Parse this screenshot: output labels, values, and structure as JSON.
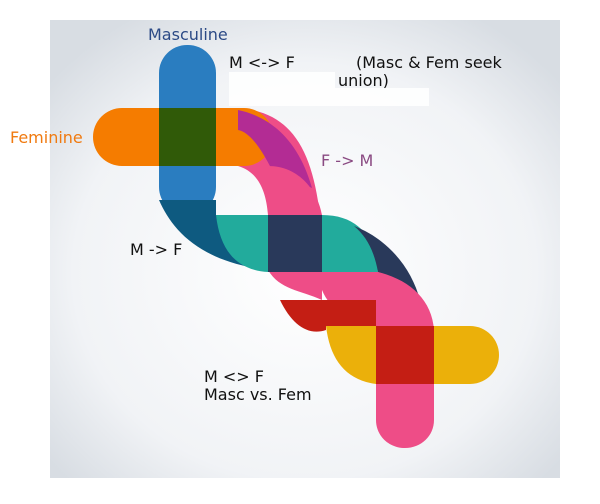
{
  "colors": {
    "masculine": "#2a7dc0",
    "masculine_shadow": "#0e5a80",
    "feminine": "#f57c00",
    "overlap_mf": "#305a08",
    "f_to_m": "#b32c94",
    "pink": "#ee4d87",
    "teal": "#22ab9c",
    "navy": "#29395a",
    "red": "#c41e14",
    "yellow": "#ebb00a",
    "label_masculine": "#2c4a86",
    "label_feminine": "#f07a10",
    "label_f_to_m": "#8a4a82"
  },
  "labels": {
    "masculine": "Masculine",
    "feminine": "Feminine",
    "f_to_m": "F -> M",
    "m_to_f": "M -> F",
    "m_sym_f": "M <-> F",
    "masc_fem_seek": "(Masc & Fem seek",
    "union": "union)",
    "m_vs_f": "M <> F",
    "masc_vs_fem": "Masc vs. Fem"
  },
  "icons": {
    "shape": "dna-double-helix-icon"
  }
}
